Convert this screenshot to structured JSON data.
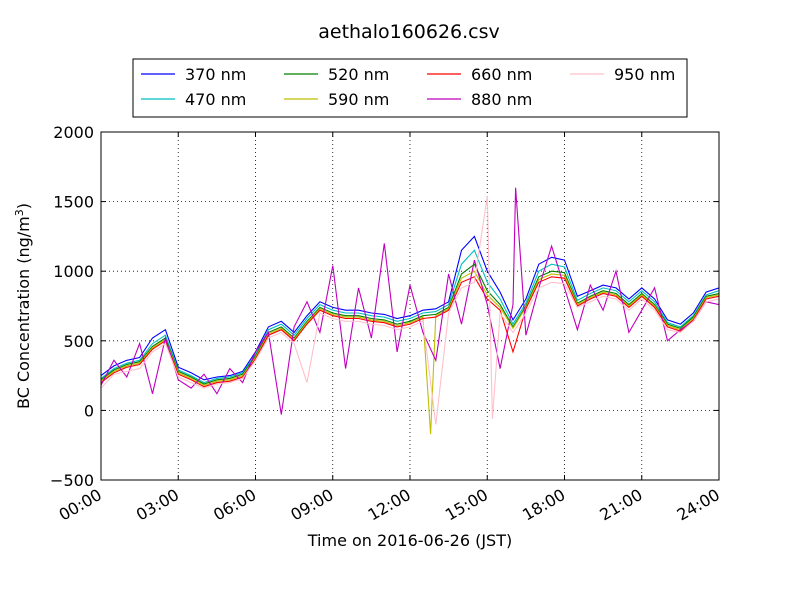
{
  "chart_data": {
    "type": "line",
    "title": "aethalo160626.csv",
    "xlabel": "Time on 2016-06-26 (JST)",
    "ylabel_main": "BC Concentration (ng/m",
    "ylabel_sup": "3",
    "ylabel_close": ")",
    "xlim": [
      0,
      24
    ],
    "ylim": [
      -500,
      2000
    ],
    "x_ticks": [
      0,
      3,
      6,
      9,
      12,
      15,
      18,
      21,
      24
    ],
    "x_tick_labels": [
      "00:00",
      "03:00",
      "06:00",
      "09:00",
      "12:00",
      "15:00",
      "18:00",
      "21:00",
      "24:00"
    ],
    "y_ticks": [
      -500,
      0,
      500,
      1000,
      1500,
      2000
    ],
    "y_tick_labels": [
      "−500",
      "0",
      "500",
      "1000",
      "1500",
      "2000"
    ],
    "grid": true,
    "legend_position": "top, above plot, 4 columns",
    "series": [
      {
        "name": "370 nm",
        "color": "#0000ff",
        "x": [
          0,
          0.5,
          1,
          1.5,
          2,
          2.5,
          3,
          3.5,
          4,
          4.5,
          5,
          5.5,
          6,
          6.5,
          7,
          7.5,
          8,
          8.5,
          9,
          9.5,
          10,
          10.5,
          11,
          11.5,
          12,
          12.5,
          13,
          13.5,
          14,
          14.5,
          15,
          15.5,
          16,
          16.5,
          17,
          17.5,
          18,
          18.5,
          19,
          19.5,
          20,
          20.5,
          21,
          21.5,
          22,
          22.5,
          23,
          23.5,
          24
        ],
        "y": [
          250,
          320,
          360,
          380,
          520,
          580,
          310,
          270,
          220,
          240,
          250,
          280,
          420,
          600,
          640,
          560,
          680,
          780,
          740,
          720,
          720,
          700,
          690,
          660,
          680,
          720,
          730,
          780,
          1150,
          1250,
          1000,
          850,
          650,
          800,
          1050,
          1100,
          1080,
          820,
          860,
          900,
          880,
          800,
          880,
          800,
          650,
          620,
          700,
          850,
          880
        ]
      },
      {
        "name": "470 nm",
        "color": "#00bfbf",
        "x": [
          0,
          0.5,
          1,
          1.5,
          2,
          2.5,
          3,
          3.5,
          4,
          4.5,
          5,
          5.5,
          6,
          6.5,
          7,
          7.5,
          8,
          8.5,
          9,
          9.5,
          10,
          10.5,
          11,
          11.5,
          12,
          12.5,
          13,
          13.5,
          14,
          14.5,
          15,
          15.5,
          16,
          16.5,
          17,
          17.5,
          18,
          18.5,
          19,
          19.5,
          20,
          20.5,
          21,
          21.5,
          22,
          22.5,
          23,
          23.5,
          24
        ],
        "y": [
          230,
          300,
          340,
          360,
          480,
          540,
          290,
          250,
          200,
          230,
          240,
          270,
          400,
          580,
          620,
          540,
          660,
          760,
          720,
          700,
          700,
          680,
          670,
          640,
          660,
          700,
          710,
          760,
          1050,
          1150,
          920,
          800,
          620,
          770,
          1000,
          1050,
          1030,
          790,
          840,
          880,
          860,
          780,
          860,
          780,
          630,
          600,
          680,
          830,
          860
        ]
      },
      {
        "name": "520 nm",
        "color": "#008000",
        "x": [
          0,
          0.5,
          1,
          1.5,
          2,
          2.5,
          3,
          3.5,
          4,
          4.5,
          5,
          5.5,
          6,
          6.5,
          7,
          7.5,
          8,
          8.5,
          9,
          9.5,
          10,
          10.5,
          11,
          11.5,
          12,
          12.5,
          13,
          13.5,
          14,
          14.5,
          15,
          15.5,
          16,
          16.5,
          17,
          17.5,
          18,
          18.5,
          19,
          19.5,
          20,
          20.5,
          21,
          21.5,
          22,
          22.5,
          23,
          23.5,
          24
        ],
        "y": [
          220,
          290,
          330,
          350,
          460,
          520,
          280,
          240,
          190,
          220,
          230,
          260,
          390,
          560,
          600,
          520,
          640,
          740,
          700,
          680,
          680,
          660,
          650,
          620,
          640,
          680,
          690,
          740,
          980,
          1050,
          860,
          760,
          600,
          750,
          960,
          1000,
          990,
          770,
          820,
          860,
          840,
          760,
          840,
          760,
          620,
          590,
          670,
          820,
          840
        ]
      },
      {
        "name": "590 nm",
        "color": "#bfbf00",
        "x": [
          0,
          0.5,
          1,
          1.5,
          2,
          2.5,
          3,
          3.5,
          4,
          4.5,
          5,
          5.5,
          6,
          6.5,
          7,
          7.5,
          8,
          8.5,
          9,
          9.5,
          10,
          10.5,
          11,
          11.5,
          12,
          12.5,
          12.8,
          13,
          13.5,
          14,
          14.5,
          15,
          15.5,
          16,
          16.5,
          17,
          17.5,
          18,
          18.5,
          19,
          19.5,
          20,
          20.5,
          21,
          21.5,
          22,
          22.5,
          23,
          23.5,
          24
        ],
        "y": [
          210,
          280,
          320,
          340,
          450,
          510,
          270,
          230,
          180,
          210,
          220,
          250,
          380,
          550,
          590,
          510,
          630,
          730,
          690,
          670,
          670,
          650,
          640,
          610,
          630,
          670,
          -170,
          680,
          730,
          950,
          1000,
          830,
          740,
          590,
          740,
          940,
          980,
          970,
          760,
          810,
          850,
          830,
          750,
          830,
          750,
          610,
          580,
          660,
          810,
          830
        ]
      },
      {
        "name": "660 nm",
        "color": "#ff0000",
        "x": [
          0,
          0.5,
          1,
          1.5,
          2,
          2.5,
          3,
          3.5,
          4,
          4.5,
          5,
          5.5,
          6,
          6.5,
          7,
          7.5,
          8,
          8.5,
          9,
          9.5,
          10,
          10.5,
          11,
          11.5,
          12,
          12.5,
          13,
          13.5,
          14,
          14.5,
          15,
          15.5,
          16,
          16.5,
          17,
          17.5,
          18,
          18.5,
          19,
          19.5,
          20,
          20.5,
          21,
          21.5,
          22,
          22.5,
          23,
          23.5,
          24
        ],
        "y": [
          200,
          270,
          310,
          330,
          440,
          500,
          260,
          220,
          170,
          200,
          210,
          240,
          370,
          540,
          580,
          500,
          620,
          720,
          680,
          660,
          660,
          640,
          630,
          600,
          620,
          660,
          670,
          720,
          920,
          960,
          800,
          720,
          420,
          730,
          920,
          960,
          950,
          750,
          800,
          840,
          820,
          740,
          820,
          740,
          600,
          570,
          650,
          800,
          820
        ]
      },
      {
        "name": "880 nm",
        "color": "#bf00bf",
        "x": [
          0,
          0.5,
          1,
          1.5,
          2,
          2.5,
          3,
          3.5,
          4,
          4.5,
          5,
          5.5,
          6,
          6.5,
          7,
          7.5,
          8,
          8.5,
          9,
          9.5,
          10,
          10.5,
          11,
          11.5,
          12,
          12.5,
          13,
          13.5,
          14,
          14.5,
          15,
          15.5,
          16,
          16.1,
          16.5,
          17,
          17.5,
          18,
          18.5,
          19,
          19.5,
          20,
          20.5,
          21,
          21.5,
          22,
          22.5,
          23,
          23.5,
          24
        ],
        "y": [
          180,
          360,
          240,
          480,
          120,
          520,
          220,
          160,
          260,
          120,
          300,
          200,
          420,
          560,
          -30,
          600,
          780,
          560,
          1040,
          300,
          880,
          520,
          1200,
          420,
          900,
          560,
          360,
          980,
          620,
          1080,
          760,
          300,
          760,
          1600,
          540,
          880,
          1180,
          880,
          580,
          900,
          720,
          1000,
          560,
          720,
          880,
          500,
          580,
          640,
          780,
          760
        ]
      },
      {
        "name": "950 nm",
        "color": "#ffc0cb",
        "x": [
          0,
          0.5,
          1,
          1.5,
          2,
          2.5,
          3,
          3.5,
          4,
          4.5,
          5,
          5.5,
          6,
          6.5,
          7,
          7.5,
          8,
          8.5,
          9,
          9.5,
          10,
          10.5,
          11,
          11.5,
          12,
          12.5,
          13,
          13.5,
          14,
          14.5,
          15,
          15.2,
          15.5,
          16,
          16.5,
          17,
          17.5,
          18,
          18.5,
          19,
          19.5,
          20,
          20.5,
          21,
          21.5,
          22,
          22.5,
          23,
          23.5,
          24
        ],
        "y": [
          160,
          260,
          280,
          300,
          420,
          480,
          240,
          200,
          160,
          190,
          200,
          230,
          360,
          520,
          560,
          480,
          200,
          700,
          660,
          640,
          640,
          620,
          610,
          580,
          600,
          640,
          -100,
          700,
          880,
          920,
          1540,
          -60,
          700,
          560,
          700,
          880,
          920,
          910,
          740,
          780,
          820,
          800,
          720,
          800,
          720,
          580,
          560,
          640,
          780,
          800
        ]
      }
    ]
  }
}
